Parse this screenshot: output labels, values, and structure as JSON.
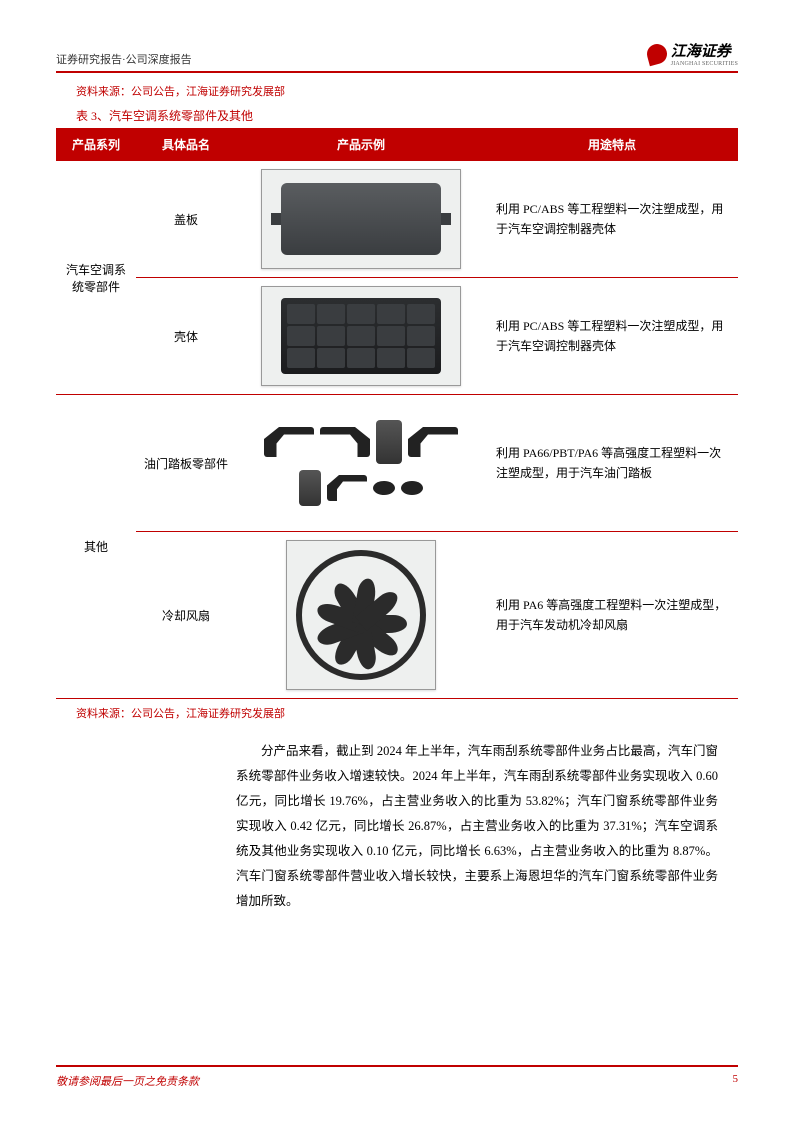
{
  "header": {
    "breadcrumb": "证券研究报告·公司深度报告",
    "logo_cn": "江海证券",
    "logo_en": "JIANGHAI SECURITIES"
  },
  "source_line_1": "资料来源：公司公告，江海证券研究发展部",
  "table": {
    "title": "表 3、汽车空调系统零部件及其他",
    "columns": [
      "产品系列",
      "具体品名",
      "产品示例",
      "用途特点"
    ],
    "series": [
      {
        "series_label": "汽车空调系统零部件",
        "rows": [
          {
            "name": "盖板",
            "desc": "利用 PC/ABS 等工程塑料一次注塑成型，用于汽车空调控制器壳体"
          },
          {
            "name": "壳体",
            "desc": "利用 PC/ABS 等工程塑料一次注塑成型，用于汽车空调控制器壳体"
          }
        ]
      },
      {
        "series_label": "其他",
        "rows": [
          {
            "name": "油门踏板零部件",
            "desc": "利用 PA66/PBT/PA6 等高强度工程塑料一次注塑成型，用于汽车油门踏板"
          },
          {
            "name": "冷却风扇",
            "desc": "利用 PA6 等高强度工程塑料一次注塑成型，用于汽车发动机冷却风扇"
          }
        ]
      }
    ],
    "header_bg": "#c00000",
    "header_fg": "#ffffff",
    "border_color": "#c00000"
  },
  "source_line_2": "资料来源：公司公告，江海证券研究发展部",
  "body_paragraph": "分产品来看，截止到 2024 年上半年，汽车雨刮系统零部件业务占比最高，汽车门窗系统零部件业务收入增速较快。2024 年上半年，汽车雨刮系统零部件业务实现收入 0.60 亿元，同比增长 19.76%，占主营业务收入的比重为 53.82%；汽车门窗系统零部件业务实现收入 0.42 亿元，同比增长 26.87%，占主营业务收入的比重为 37.31%；汽车空调系统及其他业务实现收入 0.10 亿元，同比增长 6.63%，占主营业务收入的比重为 8.87%。汽车门窗系统零部件营业收入增长较快，主要系上海恩坦华的汽车门窗系统零部件业务增加所致。",
  "footer": {
    "left": "敬请参阅最后一页之免责条款",
    "page": "5"
  },
  "fan": {
    "blade_count": 9
  }
}
